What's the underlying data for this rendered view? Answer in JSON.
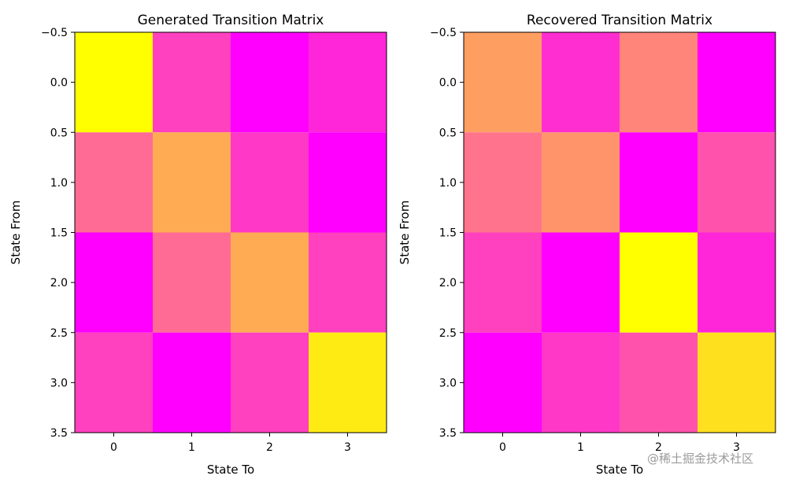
{
  "chart_data": [
    {
      "type": "heatmap",
      "title": "Generated Transition Matrix",
      "xlabel": "State To",
      "ylabel": "State From",
      "x_ticks": [
        "0",
        "1",
        "2",
        "3"
      ],
      "y_ticks": [
        "−0.5",
        "0.0",
        "0.5",
        "1.0",
        "1.5",
        "2.0",
        "2.5",
        "3.0",
        "3.5"
      ],
      "xlim": [
        -0.5,
        3.5
      ],
      "ylim": [
        3.5,
        -0.5
      ],
      "colormap": "spring",
      "matrix": [
        [
          1.0,
          0.25,
          0.0,
          0.15
        ],
        [
          0.42,
          0.67,
          0.22,
          0.0
        ],
        [
          0.0,
          0.42,
          0.67,
          0.25
        ],
        [
          0.25,
          0.0,
          0.25,
          0.92
        ]
      ]
    },
    {
      "type": "heatmap",
      "title": "Recovered Transition Matrix",
      "xlabel": "State To",
      "ylabel": "State From",
      "x_ticks": [
        "0",
        "1",
        "2",
        "3"
      ],
      "y_ticks": [
        "−0.5",
        "0.0",
        "0.5",
        "1.0",
        "1.5",
        "2.0",
        "2.5",
        "3.0",
        "3.5"
      ],
      "xlim": [
        -0.5,
        3.5
      ],
      "ylim": [
        3.5,
        -0.5
      ],
      "colormap": "spring",
      "matrix": [
        [
          0.62,
          0.18,
          0.52,
          0.0
        ],
        [
          0.45,
          0.58,
          0.0,
          0.32
        ],
        [
          0.25,
          0.0,
          1.0,
          0.15
        ],
        [
          0.0,
          0.22,
          0.32,
          0.88
        ]
      ]
    }
  ],
  "watermark": "@稀土掘金技术社区"
}
